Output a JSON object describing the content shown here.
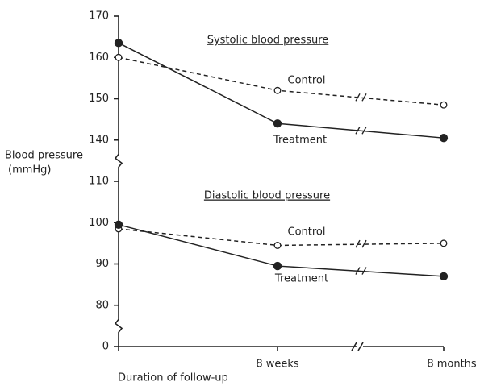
{
  "chart_data": {
    "type": "line",
    "ylabel": [
      "Blood pressure",
      "(mmHg)"
    ],
    "xlabel": "Duration of follow-up",
    "categories": [
      null,
      "8 weeks",
      "8 months"
    ],
    "ylim": [
      0,
      170
    ],
    "yticks": [
      0,
      80,
      90,
      100,
      110,
      140,
      150,
      160,
      170
    ],
    "y_break": true,
    "panels": [
      {
        "subtitle": "Systolic blood pressure",
        "series": [
          {
            "name": "Control",
            "color": "#222222",
            "style": "dashed",
            "marker": "open",
            "values": [
              160,
              152,
              148.5
            ]
          },
          {
            "name": "Treatment",
            "color": "#222222",
            "style": "solid",
            "marker": "filled",
            "values": [
              163.5,
              144,
              140.5
            ]
          }
        ]
      },
      {
        "subtitle": "Diastolic blood pressure",
        "series": [
          {
            "name": "Control",
            "color": "#222222",
            "style": "dashed",
            "marker": "open",
            "values": [
              98.5,
              94.5,
              95
            ]
          },
          {
            "name": "Treatment",
            "color": "#222222",
            "style": "solid",
            "marker": "filled",
            "values": [
              99.5,
              89.5,
              87
            ]
          }
        ]
      }
    ]
  }
}
